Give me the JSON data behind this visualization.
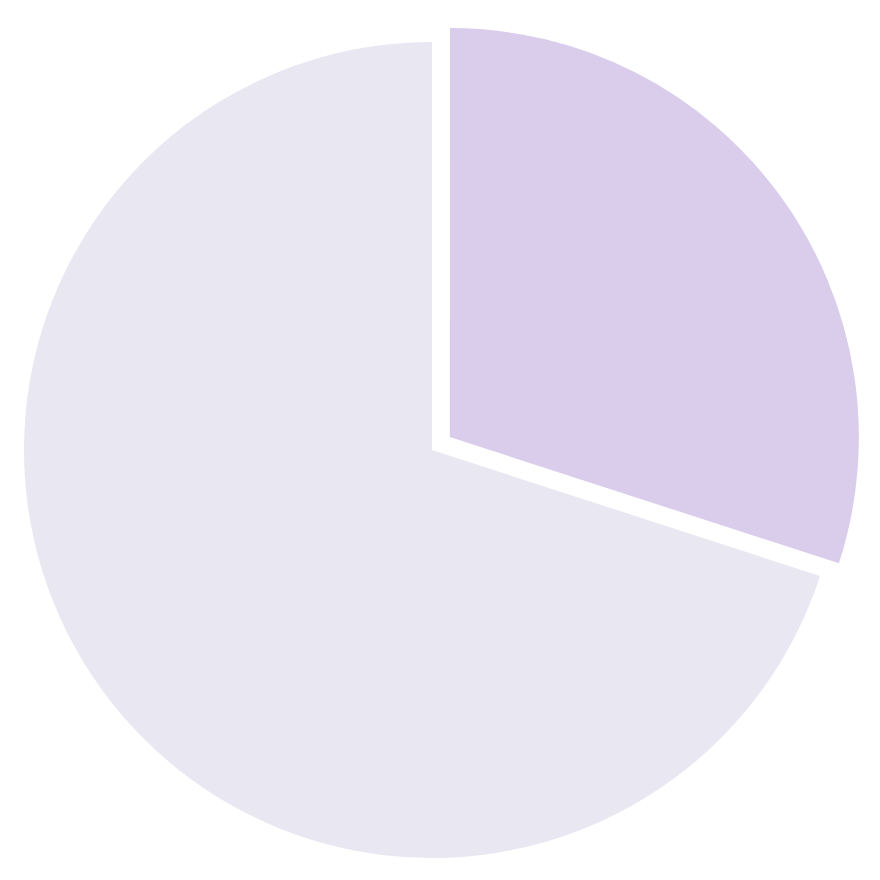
{
  "chart_data": {
    "type": "pie",
    "categories": [
      null,
      null
    ],
    "values": [
      30,
      70
    ],
    "colors": [
      "#dacdec",
      "#e9e7f2"
    ]
  }
}
